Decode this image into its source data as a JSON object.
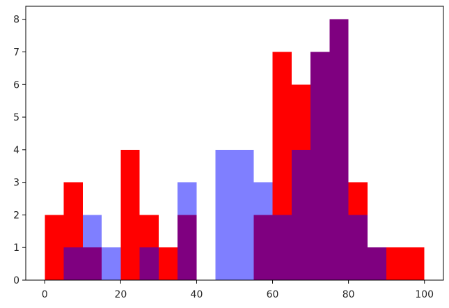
{
  "chart_data": {
    "type": "bar",
    "subtype": "overlapping-histogram",
    "title": "",
    "xlabel": "",
    "ylabel": "",
    "xlim": [
      -5,
      105
    ],
    "ylim": [
      0,
      8.4
    ],
    "xticks": [
      0,
      20,
      40,
      60,
      80,
      100
    ],
    "yticks": [
      0,
      1,
      2,
      3,
      4,
      5,
      6,
      7,
      8
    ],
    "grid": false,
    "legend": "none",
    "bin_edges": [
      0,
      5,
      10,
      15,
      20,
      25,
      30,
      35,
      40,
      45,
      50,
      55,
      60,
      65,
      70,
      75,
      80,
      85,
      90,
      95,
      100
    ],
    "series": [
      {
        "color": "#ff0000",
        "opacity": 1.0,
        "values": [
          2,
          3,
          1,
          0,
          4,
          2,
          1,
          2,
          0,
          0,
          0,
          2,
          7,
          6,
          7,
          8,
          3,
          1,
          1,
          1
        ]
      },
      {
        "color": "#0000ff",
        "opacity": 0.5,
        "values": [
          0,
          1,
          2,
          1,
          0,
          1,
          0,
          3,
          0,
          4,
          4,
          3,
          2,
          4,
          7,
          8,
          2,
          1,
          0,
          0
        ]
      }
    ]
  }
}
